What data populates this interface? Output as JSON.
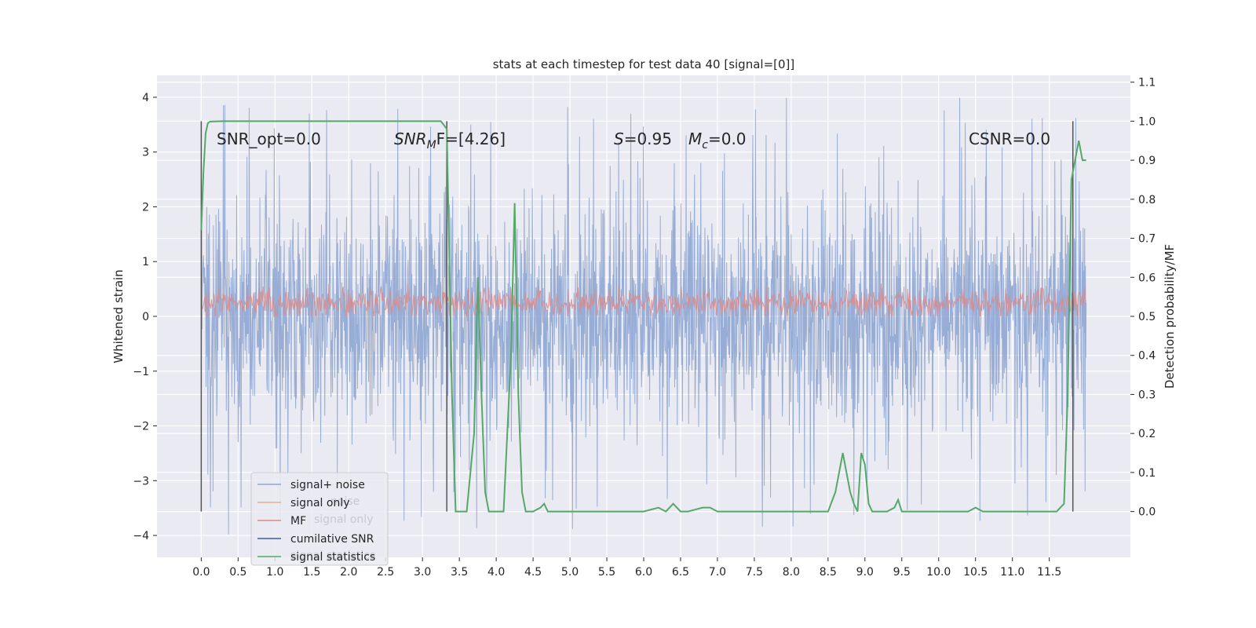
{
  "chart_data": {
    "type": "line",
    "title": "stats at each timestep for test data 40 [signal=[0]]",
    "ylabel": "Whitened strain",
    "y2label": "Detection probability/MF",
    "xlim": [
      -0.6,
      12.6
    ],
    "ylim": [
      -4.4,
      4.4
    ],
    "y2lim": [
      -0.1174,
      1.1174
    ],
    "grid": true,
    "x_ticks": [
      "0.0",
      "0.5",
      "1.0",
      "1.5",
      "2.0",
      "2.5",
      "3.0",
      "3.5",
      "4.0",
      "4.5",
      "5.0",
      "5.5",
      "6.0",
      "6.5",
      "7.0",
      "7.5",
      "8.0",
      "8.5",
      "9.0",
      "9.5",
      "10.0",
      "10.5",
      "11.0",
      "11.5"
    ],
    "y_ticks": [
      "4",
      "3",
      "2",
      "1",
      "0",
      "−1",
      "−2",
      "−3",
      "−4"
    ],
    "y2_ticks": [
      "1.1",
      "1.0",
      "0.9",
      "0.8",
      "0.7",
      "0.6",
      "0.5",
      "0.4",
      "0.3",
      "0.2",
      "0.1",
      "0.0"
    ],
    "annotations": {
      "snr_opt": "SNR_opt=0.0",
      "snr_mf_main": "SNR",
      "snr_mf_sub": "M",
      "snr_mf_rest": "F=[4.26]",
      "s_label": "S",
      "s_value": "=0.95",
      "mc_main": "M",
      "mc_sub": "c",
      "mc_value": "=0.0",
      "csnr": "CSNR=0.0"
    },
    "vertical_lines_x": [
      0.0,
      3.33,
      11.82
    ],
    "legend": {
      "placement": "lower-left",
      "entries": [
        {
          "label": "signal+ noise",
          "color": "#8fa6d1"
        },
        {
          "label": "signal only",
          "color": "#e5ad8c"
        },
        {
          "label": "MF",
          "color": "#d98a8a"
        },
        {
          "label": "cumilative SNR",
          "color": "#3c5da6"
        },
        {
          "label": "signal statistics",
          "color": "#55a868"
        }
      ],
      "ghost_entries": [
        "noise",
        "signal only",
        "signal statistics"
      ]
    },
    "series": [
      {
        "name": "signal+ noise",
        "color": "#8fa6d1",
        "x_range": [
          0.0,
          12.0
        ],
        "typical_range": [
          -2.0,
          2.0
        ],
        "extremes": [
          -4.0,
          4.05
        ]
      },
      {
        "name": "MF",
        "color": "#d98a8a",
        "x_range": [
          0.0,
          12.0
        ],
        "typical_range": [
          0.0,
          0.6
        ]
      },
      {
        "name": "signal statistics",
        "color": "#55a868",
        "axis": "right",
        "x": [
          0.0,
          0.03,
          0.06,
          0.09,
          0.12,
          0.3,
          0.6,
          1.0,
          1.5,
          2.0,
          2.5,
          3.0,
          3.25,
          3.33,
          3.4,
          3.45,
          3.5,
          3.6,
          3.7,
          3.75,
          3.8,
          3.85,
          3.9,
          4.0,
          4.1,
          4.2,
          4.25,
          4.3,
          4.35,
          4.4,
          4.5,
          4.6,
          4.65,
          4.7,
          4.8,
          5.0,
          5.5,
          6.0,
          6.2,
          6.3,
          6.4,
          6.5,
          6.6,
          6.8,
          6.9,
          7.0,
          7.5,
          8.0,
          8.5,
          8.6,
          8.7,
          8.8,
          8.85,
          8.9,
          8.95,
          9.0,
          9.05,
          9.1,
          9.2,
          9.3,
          9.4,
          9.45,
          9.5,
          9.55,
          9.6,
          10.0,
          10.4,
          10.5,
          10.6,
          11.0,
          11.6,
          11.7,
          11.75,
          11.8,
          11.85,
          11.9,
          11.95,
          12.0
        ],
        "y": [
          0.72,
          0.87,
          0.97,
          0.995,
          0.999,
          1.0,
          1.0,
          1.0,
          1.0,
          1.0,
          1.0,
          1.0,
          1.0,
          0.98,
          0.3,
          0.0,
          0.0,
          0.0,
          0.2,
          0.6,
          0.3,
          0.05,
          0.0,
          0.0,
          0.0,
          0.4,
          0.79,
          0.3,
          0.05,
          0.0,
          0.0,
          0.01,
          0.02,
          0.0,
          0.0,
          0.0,
          0.0,
          0.0,
          0.01,
          0.0,
          0.02,
          0.0,
          0.0,
          0.01,
          0.01,
          0.0,
          0.0,
          0.0,
          0.0,
          0.05,
          0.15,
          0.05,
          0.02,
          0.0,
          0.15,
          0.12,
          0.02,
          0.0,
          0.0,
          0.0,
          0.01,
          0.03,
          0.0,
          0.0,
          0.0,
          0.0,
          0.0,
          0.01,
          0.0,
          0.0,
          0.0,
          0.02,
          0.3,
          0.85,
          0.9,
          0.95,
          0.9,
          0.9
        ]
      }
    ]
  }
}
